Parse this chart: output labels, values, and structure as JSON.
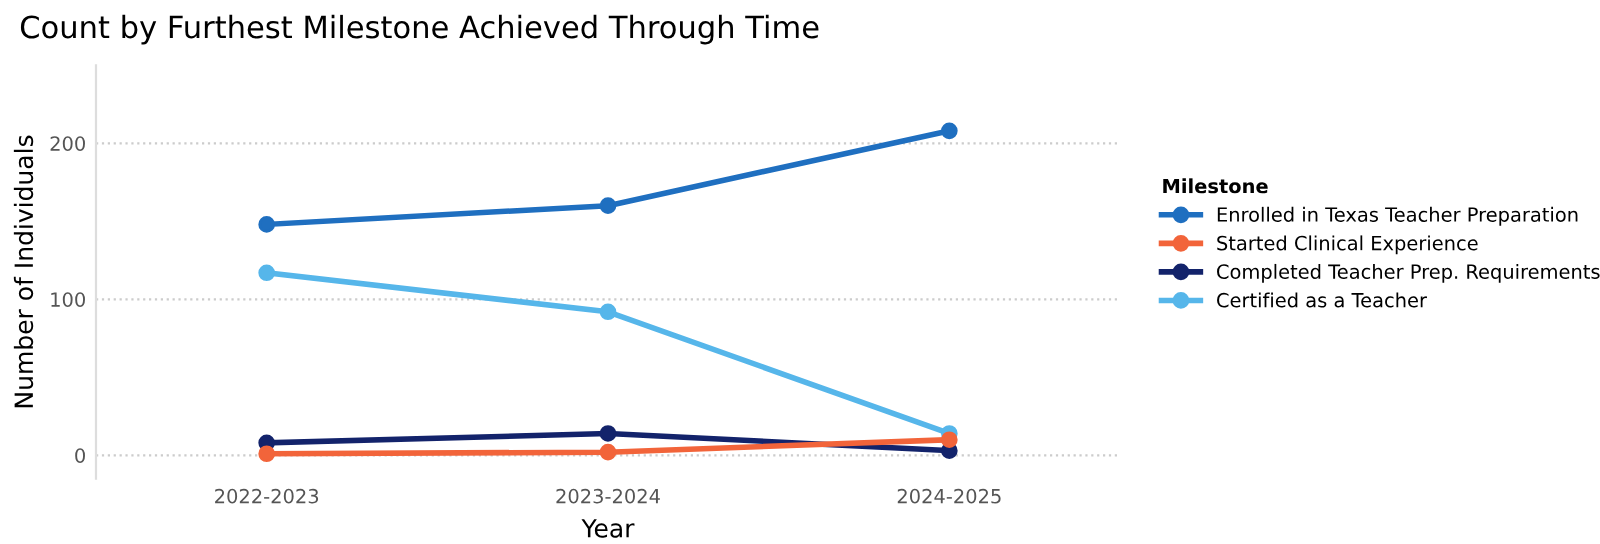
{
  "chart_data": {
    "type": "line",
    "title": "Count by Furthest Milestone Achieved Through Time",
    "xlabel": "Year",
    "ylabel": "Number of Individuals",
    "legend_title": "Milestone",
    "categories": [
      "2022-2023",
      "2023-2024",
      "2024-2025"
    ],
    "series": [
      {
        "name": "Enrolled in Texas Teacher Preparation",
        "color": "#1f6fc0",
        "values": [
          148,
          160,
          208
        ]
      },
      {
        "name": "Started Clinical Experience",
        "color": "#f2643a",
        "values": [
          1,
          2,
          10
        ]
      },
      {
        "name": "Completed Teacher Prep. Requirements",
        "color": "#13236b",
        "values": [
          8,
          14,
          3
        ]
      },
      {
        "name": "Certified as a Teacher",
        "color": "#56b6ea",
        "values": [
          117,
          92,
          14
        ]
      }
    ],
    "ylim": [
      -15,
      250
    ],
    "yticks": [
      0,
      100,
      200
    ],
    "grid": "y",
    "legend": "right",
    "marker": "circle",
    "line_style": "solid"
  }
}
